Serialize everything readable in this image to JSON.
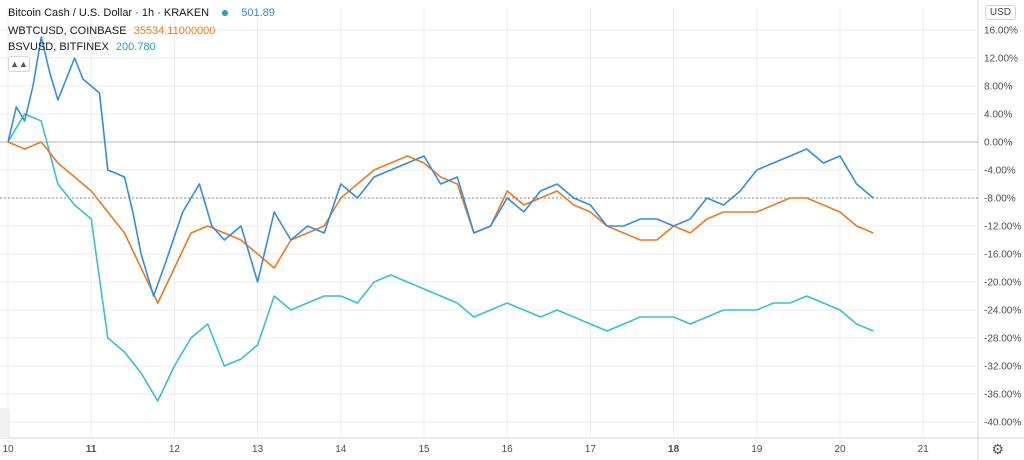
{
  "legend": {
    "main_title": "Bitcoin Cash / U.S. Dollar · 1h · KRAKEN",
    "main_value": "501.89",
    "s2_title": "WBTCUSD, COINBASE",
    "s2_value": "35534.11000000",
    "s3_title": "BSVUSD, BITFINEX",
    "s3_value": "200.780"
  },
  "controls": {
    "currency": "USD",
    "collapse": "▲▲",
    "settings_icon": "gear-icon",
    "gear_glyph": "⚙"
  },
  "colors": {
    "bch": "#2f8fe0",
    "wbtc": "#f07a1e",
    "bsv": "#36c2d2",
    "grid": "#eeeeee"
  },
  "chart_data": {
    "type": "line",
    "title": "Bitcoin Cash / U.S. Dollar · 1h · KRAKEN",
    "xlabel": "",
    "ylabel": "",
    "y_unit": "%",
    "ylim": [
      -42,
      18
    ],
    "y_ticks": [
      "16.00%",
      "12.00%",
      "8.00%",
      "4.00%",
      "0.00%",
      "-4.00%",
      "-8.00%",
      "-12.00%",
      "-16.00%",
      "-20.00%",
      "-24.00%",
      "-28.00%",
      "-32.00%",
      "-36.00%",
      "-40.00%"
    ],
    "x_ticks": [
      "10",
      "11",
      "12",
      "13",
      "14",
      "15",
      "16",
      "17",
      "18",
      "19",
      "20",
      "21"
    ],
    "xlim": [
      10,
      21
    ],
    "current_level": -8.0,
    "series": [
      {
        "name": "BCHUSD",
        "x": [
          10,
          10.1,
          10.2,
          10.3,
          10.4,
          10.5,
          10.6,
          10.8,
          10.9,
          11.1,
          11.2,
          11.4,
          11.5,
          11.6,
          11.75,
          11.9,
          12.1,
          12.3,
          12.45,
          12.6,
          12.8,
          13.0,
          13.2,
          13.4,
          13.6,
          13.8,
          14.0,
          14.2,
          14.4,
          14.6,
          14.8,
          15.0,
          15.2,
          15.4,
          15.6,
          15.8,
          16.0,
          16.2,
          16.4,
          16.6,
          16.8,
          17.0,
          17.2,
          17.4,
          17.6,
          17.8,
          18.0,
          18.2,
          18.4,
          18.6,
          18.8,
          19.0,
          19.2,
          19.4,
          19.6,
          19.8,
          20.0,
          20.2,
          20.4
        ],
        "values": [
          0,
          5,
          3,
          8,
          15,
          10,
          6,
          12,
          9,
          7,
          -4,
          -5,
          -10,
          -16,
          -22,
          -17,
          -10,
          -6,
          -12,
          -14,
          -12,
          -20,
          -10,
          -14,
          -12,
          -13,
          -6,
          -8,
          -5,
          -4,
          -3,
          -2,
          -6,
          -5,
          -13,
          -12,
          -8,
          -10,
          -7,
          -6,
          -8,
          -9,
          -12,
          -12,
          -11,
          -11,
          -12,
          -11,
          -8,
          -9,
          -7,
          -4,
          -3,
          -2,
          -1,
          -3,
          -2,
          -6,
          -8
        ]
      },
      {
        "name": "WBTCUSD",
        "x": [
          10,
          10.2,
          10.4,
          10.6,
          10.8,
          11.0,
          11.2,
          11.4,
          11.6,
          11.8,
          12.0,
          12.2,
          12.4,
          12.6,
          12.8,
          13.0,
          13.2,
          13.4,
          13.6,
          13.8,
          14.0,
          14.2,
          14.4,
          14.6,
          14.8,
          15.0,
          15.2,
          15.4,
          15.6,
          15.8,
          16.0,
          16.2,
          16.4,
          16.6,
          16.8,
          17.0,
          17.2,
          17.4,
          17.6,
          17.8,
          18.0,
          18.2,
          18.4,
          18.6,
          18.8,
          19.0,
          19.2,
          19.4,
          19.6,
          19.8,
          20.0,
          20.2,
          20.4
        ],
        "values": [
          0,
          -1,
          0,
          -3,
          -5,
          -7,
          -10,
          -13,
          -18,
          -23,
          -18,
          -13,
          -12,
          -13,
          -14,
          -16,
          -18,
          -14,
          -13,
          -12,
          -8,
          -6,
          -4,
          -3,
          -2,
          -3,
          -5,
          -6,
          -13,
          -12,
          -7,
          -9,
          -8,
          -7,
          -9,
          -10,
          -12,
          -13,
          -14,
          -14,
          -12,
          -13,
          -11,
          -10,
          -10,
          -10,
          -9,
          -8,
          -8,
          -9,
          -10,
          -12,
          -13
        ]
      },
      {
        "name": "BSVUSD",
        "x": [
          10,
          10.2,
          10.4,
          10.6,
          10.8,
          11.0,
          11.2,
          11.4,
          11.6,
          11.8,
          12.0,
          12.2,
          12.4,
          12.6,
          12.8,
          13.0,
          13.2,
          13.4,
          13.6,
          13.8,
          14.0,
          14.2,
          14.4,
          14.6,
          14.8,
          15.0,
          15.2,
          15.4,
          15.6,
          15.8,
          16.0,
          16.2,
          16.4,
          16.6,
          16.8,
          17.0,
          17.2,
          17.4,
          17.6,
          17.8,
          18.0,
          18.2,
          18.4,
          18.6,
          18.8,
          19.0,
          19.2,
          19.4,
          19.6,
          19.8,
          20.0,
          20.2,
          20.4
        ],
        "values": [
          0,
          4,
          3,
          -6,
          -9,
          -11,
          -28,
          -30,
          -33,
          -37,
          -32,
          -28,
          -26,
          -32,
          -31,
          -29,
          -22,
          -24,
          -23,
          -22,
          -22,
          -23,
          -20,
          -19,
          -20,
          -21,
          -22,
          -23,
          -25,
          -24,
          -23,
          -24,
          -25,
          -24,
          -25,
          -26,
          -27,
          -26,
          -25,
          -25,
          -25,
          -26,
          -25,
          -24,
          -24,
          -24,
          -23,
          -23,
          -22,
          -23,
          -24,
          -26,
          -27
        ]
      }
    ]
  }
}
